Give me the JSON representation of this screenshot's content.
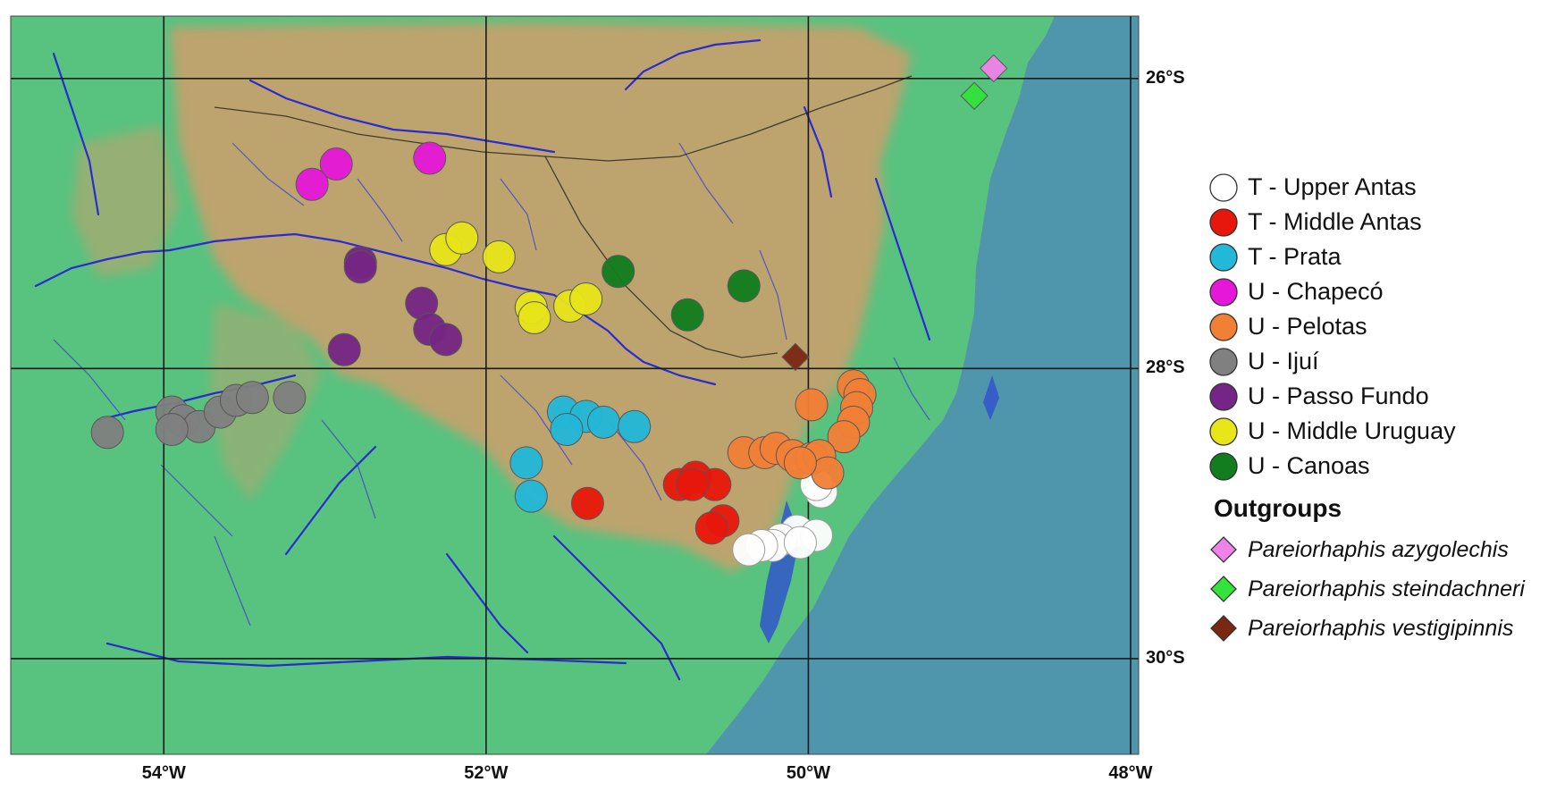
{
  "axes": {
    "lon_ticks": [
      {
        "value": -54,
        "label": "54°W"
      },
      {
        "value": -52,
        "label": "52°W"
      },
      {
        "value": -50,
        "label": "50°W"
      },
      {
        "value": -48,
        "label": "48°W"
      }
    ],
    "lat_ticks": [
      {
        "value": -26,
        "label": "26°S"
      },
      {
        "value": -28,
        "label": "28°S"
      },
      {
        "value": -30,
        "label": "30°S"
      }
    ],
    "lon_range": [
      -54.95,
      -47.95
    ],
    "lat_range": [
      -25.57,
      -30.66
    ]
  },
  "legend": {
    "heading_outgroups": "Outgroups"
  },
  "colors": {
    "ocean": "#4f95ab",
    "lowland": "#58c27f",
    "highland": "#c8a06c",
    "rivers": "#2b2bd0",
    "grid": "#1a1a1a"
  },
  "chart_data": {
    "type": "scatter",
    "series": [
      {
        "name": "T - Upper Antas",
        "marker": "circle",
        "color": "#ffffff",
        "points": [
          [
            -49.92,
            -28.85
          ],
          [
            -49.95,
            -28.8
          ],
          [
            -50.07,
            -29.12
          ],
          [
            -49.95,
            -29.15
          ],
          [
            -50.17,
            -29.18
          ],
          [
            -50.22,
            -29.22
          ],
          [
            -50.29,
            -29.22
          ],
          [
            -50.37,
            -29.25
          ],
          [
            -50.05,
            -29.2
          ]
        ]
      },
      {
        "name": "T - Middle Antas",
        "marker": "circle",
        "color": "#e8170c",
        "points": [
          [
            -51.37,
            -28.93
          ],
          [
            -50.8,
            -28.8
          ],
          [
            -50.7,
            -28.75
          ],
          [
            -50.58,
            -28.8
          ],
          [
            -50.53,
            -29.05
          ],
          [
            -50.6,
            -29.1
          ],
          [
            -50.72,
            -28.8
          ]
        ]
      },
      {
        "name": "T - Prata",
        "marker": "circle",
        "color": "#22b8d8",
        "points": [
          [
            -51.52,
            -28.3
          ],
          [
            -51.38,
            -28.33
          ],
          [
            -51.27,
            -28.37
          ],
          [
            -51.5,
            -28.42
          ],
          [
            -51.08,
            -28.4
          ],
          [
            -51.75,
            -28.65
          ],
          [
            -51.72,
            -28.88
          ]
        ]
      },
      {
        "name": "U - Chapecó",
        "marker": "circle",
        "color": "#e617d8",
        "points": [
          [
            -52.93,
            -26.59
          ],
          [
            -53.08,
            -26.73
          ],
          [
            -52.35,
            -26.55
          ]
        ]
      },
      {
        "name": "U - Pelotas",
        "marker": "circle",
        "color": "#f27f36",
        "points": [
          [
            -49.98,
            -28.25
          ],
          [
            -49.72,
            -28.12
          ],
          [
            -49.68,
            -28.18
          ],
          [
            -49.7,
            -28.27
          ],
          [
            -49.72,
            -28.37
          ],
          [
            -49.78,
            -28.47
          ],
          [
            -50.4,
            -28.58
          ],
          [
            -50.27,
            -28.58
          ],
          [
            -50.2,
            -28.55
          ],
          [
            -50.1,
            -28.6
          ],
          [
            -49.98,
            -28.62
          ],
          [
            -49.93,
            -28.6
          ],
          [
            -49.88,
            -28.72
          ],
          [
            -50.05,
            -28.65
          ]
        ]
      },
      {
        "name": "U - Ijuí",
        "marker": "circle",
        "color": "#808080",
        "points": [
          [
            -54.35,
            -28.44
          ],
          [
            -53.95,
            -28.3
          ],
          [
            -53.88,
            -28.36
          ],
          [
            -53.78,
            -28.4
          ],
          [
            -53.65,
            -28.3
          ],
          [
            -53.55,
            -28.22
          ],
          [
            -53.45,
            -28.2
          ],
          [
            -53.22,
            -28.2
          ],
          [
            -53.95,
            -28.42
          ]
        ]
      },
      {
        "name": "U - Passo Fundo",
        "marker": "circle",
        "color": "#752585",
        "points": [
          [
            -52.78,
            -27.27
          ],
          [
            -52.4,
            -27.55
          ],
          [
            -52.35,
            -27.73
          ],
          [
            -52.25,
            -27.8
          ],
          [
            -52.88,
            -27.87
          ],
          [
            -52.78,
            -27.3
          ]
        ]
      },
      {
        "name": "U - Middle Uruguay",
        "marker": "circle",
        "color": "#e8e518",
        "points": [
          [
            -52.25,
            -27.18
          ],
          [
            -52.15,
            -27.1
          ],
          [
            -51.92,
            -27.23
          ],
          [
            -51.72,
            -27.58
          ],
          [
            -51.7,
            -27.65
          ],
          [
            -51.48,
            -27.57
          ],
          [
            -51.38,
            -27.52
          ]
        ]
      },
      {
        "name": "U - Canoas",
        "marker": "circle",
        "color": "#117d1f",
        "points": [
          [
            -51.18,
            -27.33
          ],
          [
            -50.4,
            -27.43
          ],
          [
            -50.75,
            -27.63
          ]
        ]
      },
      {
        "name": "Pareiorhaphis azygolechis",
        "marker": "diamond",
        "color": "#ee82e8",
        "points": [
          [
            -48.85,
            -25.93
          ]
        ]
      },
      {
        "name": "Pareiorhaphis steindachneri",
        "marker": "diamond",
        "color": "#33e23b",
        "points": [
          [
            -48.97,
            -26.12
          ]
        ]
      },
      {
        "name": "Pareiorhaphis vestigipinnis",
        "marker": "diamond",
        "color": "#7b2812",
        "points": [
          [
            -50.08,
            -27.92
          ]
        ]
      }
    ],
    "xlabel": "",
    "ylabel": "",
    "xlim": [
      -54.95,
      -47.95
    ],
    "ylim": [
      -30.66,
      -25.57
    ],
    "grid": true,
    "legend_position": "right"
  }
}
